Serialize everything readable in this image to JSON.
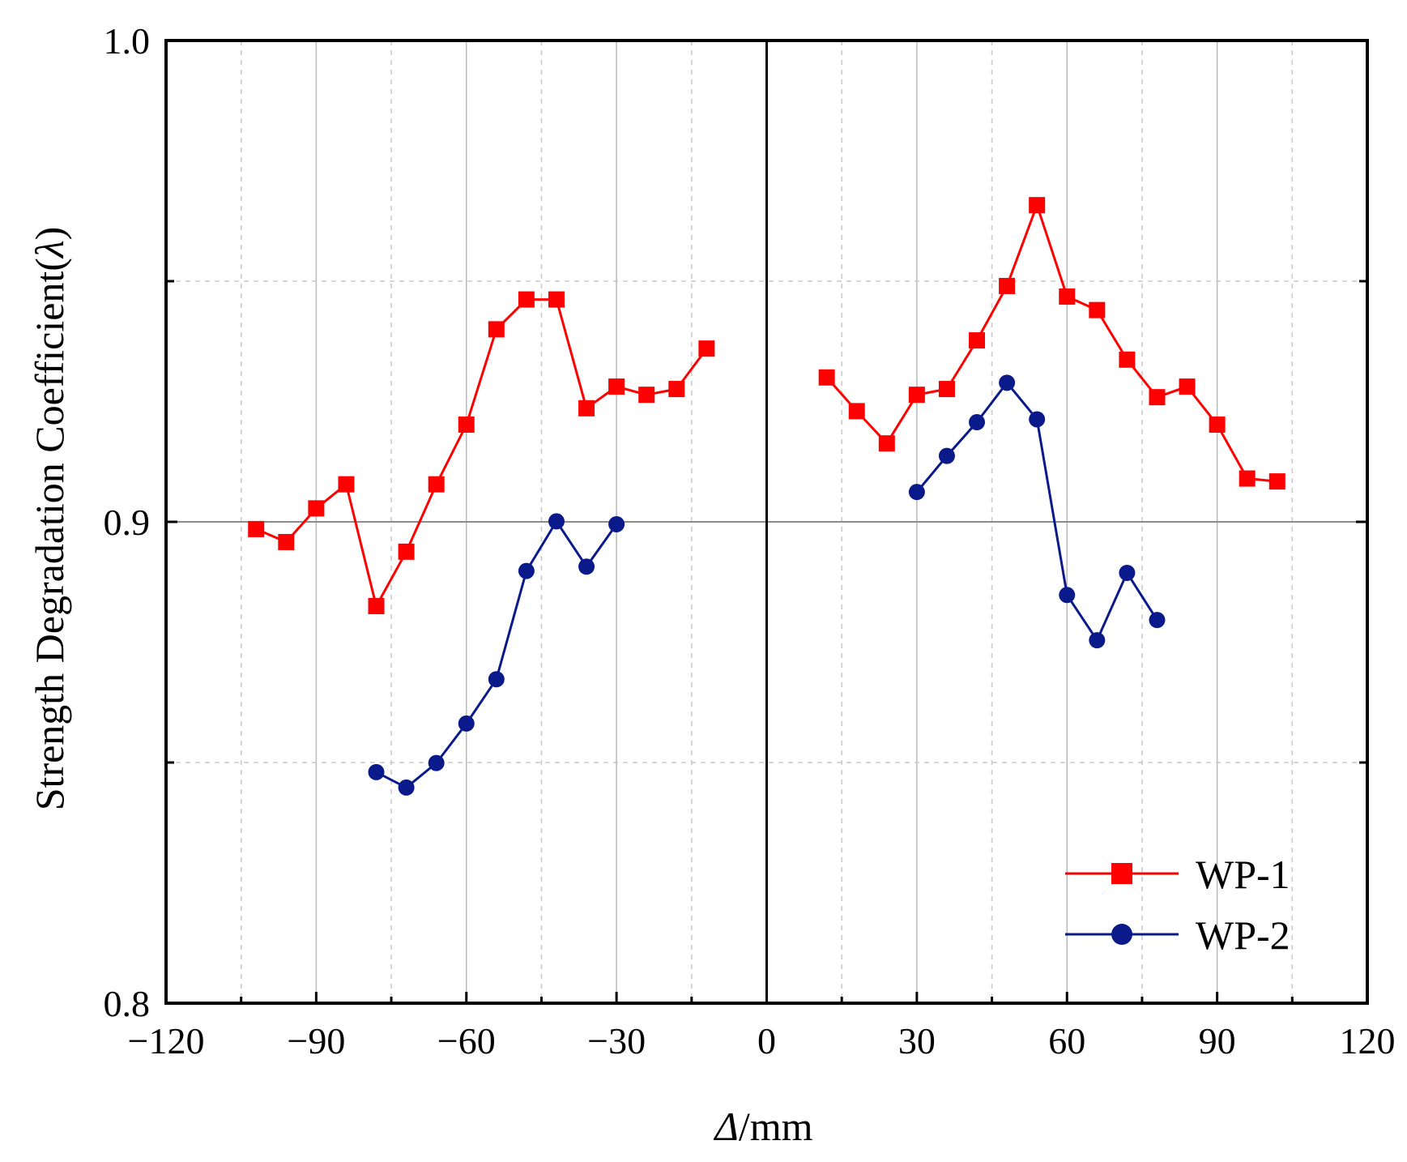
{
  "chart_data": {
    "type": "line",
    "title": "",
    "xlabel_italic": "Δ",
    "xlabel_rest": "/mm",
    "ylabel_main": "Strength Degradation Coefficient(",
    "ylabel_symbol": "λ",
    "ylabel_close": ")",
    "xlim": [
      -120,
      120
    ],
    "ylim": [
      0.8,
      1.0
    ],
    "xticks": [
      -120,
      -90,
      -60,
      -30,
      0,
      30,
      60,
      90,
      120
    ],
    "xtick_labels": [
      "−120",
      "−90",
      "−60",
      "−30",
      "0",
      "30",
      "60",
      "90",
      "120"
    ],
    "yticks": [
      0.8,
      0.9,
      1.0
    ],
    "ytick_labels": [
      "0.8",
      "0.9",
      "1.0"
    ],
    "x_minor_grid": [
      -105,
      -75,
      -45,
      -15,
      15,
      45,
      75,
      105
    ],
    "y_minor_grid": [
      0.85,
      0.95
    ],
    "grid": true,
    "legend_position": "bottom-right",
    "series": [
      {
        "name": "WP-1",
        "color": "#ff0000",
        "marker": "square",
        "segments": [
          [
            {
              "x": -102,
              "y": 0.8985
            },
            {
              "x": -96,
              "y": 0.8958
            },
            {
              "x": -90,
              "y": 0.9028
            },
            {
              "x": -84,
              "y": 0.9078
            },
            {
              "x": -78,
              "y": 0.8825
            },
            {
              "x": -72,
              "y": 0.8938
            },
            {
              "x": -66,
              "y": 0.9078
            },
            {
              "x": -60,
              "y": 0.9202
            },
            {
              "x": -54,
              "y": 0.94
            },
            {
              "x": -48,
              "y": 0.9462
            },
            {
              "x": -42,
              "y": 0.9462
            },
            {
              "x": -36,
              "y": 0.9236
            },
            {
              "x": -30,
              "y": 0.9281
            },
            {
              "x": -24,
              "y": 0.9264
            },
            {
              "x": -18,
              "y": 0.9276
            },
            {
              "x": -12,
              "y": 0.936
            }
          ],
          [
            {
              "x": 12,
              "y": 0.93
            },
            {
              "x": 18,
              "y": 0.923
            },
            {
              "x": 24,
              "y": 0.9163
            },
            {
              "x": 30,
              "y": 0.9264
            },
            {
              "x": 36,
              "y": 0.9276
            },
            {
              "x": 42,
              "y": 0.9377
            },
            {
              "x": 48,
              "y": 0.949
            },
            {
              "x": 54,
              "y": 0.9658
            },
            {
              "x": 60,
              "y": 0.9468
            },
            {
              "x": 66,
              "y": 0.944
            },
            {
              "x": 72,
              "y": 0.9337
            },
            {
              "x": 78,
              "y": 0.9259
            },
            {
              "x": 84,
              "y": 0.9281
            },
            {
              "x": 90,
              "y": 0.9202
            },
            {
              "x": 96,
              "y": 0.909
            },
            {
              "x": 102,
              "y": 0.9084
            }
          ]
        ]
      },
      {
        "name": "WP-2",
        "color": "#0a1a8a",
        "marker": "circle",
        "segments": [
          [
            {
              "x": -78,
              "y": 0.848
            },
            {
              "x": -72,
              "y": 0.8448
            },
            {
              "x": -66,
              "y": 0.8499
            },
            {
              "x": -60,
              "y": 0.8581
            },
            {
              "x": -54,
              "y": 0.8673
            },
            {
              "x": -48,
              "y": 0.8898
            },
            {
              "x": -42,
              "y": 0.9001
            },
            {
              "x": -36,
              "y": 0.8907
            },
            {
              "x": -30,
              "y": 0.8995
            }
          ],
          [
            {
              "x": 30,
              "y": 0.9062
            },
            {
              "x": 36,
              "y": 0.9137
            },
            {
              "x": 42,
              "y": 0.9207
            },
            {
              "x": 48,
              "y": 0.9289
            },
            {
              "x": 54,
              "y": 0.9213
            },
            {
              "x": 60,
              "y": 0.8848
            },
            {
              "x": 66,
              "y": 0.8754
            },
            {
              "x": 72,
              "y": 0.8894
            },
            {
              "x": 78,
              "y": 0.8796
            }
          ]
        ]
      }
    ]
  }
}
